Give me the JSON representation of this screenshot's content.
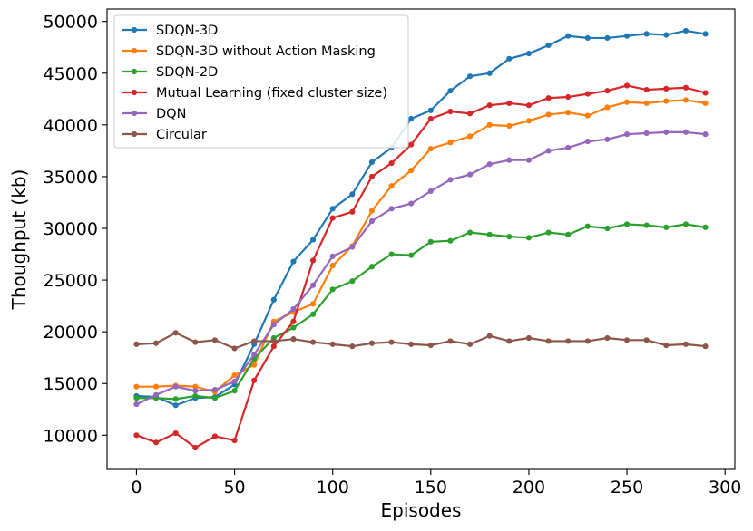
{
  "chart_data": {
    "type": "line",
    "title": "",
    "xlabel": "Episodes",
    "ylabel": "Thoughput (kb)",
    "xlim": [
      -15,
      305
    ],
    "ylim": [
      6700,
      51200
    ],
    "xticks": [
      0,
      50,
      100,
      150,
      200,
      250,
      300
    ],
    "yticks": [
      10000,
      15000,
      20000,
      25000,
      30000,
      35000,
      40000,
      45000,
      50000
    ],
    "grid": false,
    "legend_position": "top-left",
    "x": [
      0,
      10,
      20,
      30,
      40,
      50,
      60,
      70,
      80,
      90,
      100,
      110,
      120,
      130,
      140,
      150,
      160,
      170,
      180,
      190,
      200,
      210,
      220,
      230,
      240,
      250,
      260,
      270,
      280,
      290
    ],
    "series": [
      {
        "name": "SDQN-3D",
        "color": "#1f77b4",
        "values": [
          13800,
          13700,
          12900,
          13600,
          13700,
          14900,
          18800,
          23100,
          26800,
          28900,
          31900,
          33300,
          36400,
          37800,
          40600,
          41400,
          43300,
          44700,
          45000,
          46400,
          46900,
          47700,
          48600,
          48400,
          48400,
          48600,
          48800,
          48700,
          49100,
          48800
        ]
      },
      {
        "name": "SDQN-3D without Action Masking",
        "color": "#ff7f0e",
        "values": [
          14700,
          14700,
          14800,
          14700,
          14200,
          15800,
          16800,
          21000,
          21900,
          22700,
          26400,
          28300,
          31700,
          34100,
          35600,
          37700,
          38300,
          38900,
          40000,
          39900,
          40400,
          41000,
          41200,
          40900,
          41700,
          42200,
          42100,
          42300,
          42400,
          42100
        ]
      },
      {
        "name": "SDQN-2D",
        "color": "#2ca02c",
        "values": [
          13600,
          13600,
          13500,
          13800,
          13600,
          14300,
          17400,
          19400,
          20400,
          21700,
          24100,
          24900,
          26300,
          27500,
          27400,
          28700,
          28800,
          29600,
          29400,
          29200,
          29100,
          29600,
          29400,
          30200,
          30000,
          30400,
          30300,
          30100,
          30400,
          30100
        ]
      },
      {
        "name": "Mutual Learning (fixed cluster size)",
        "color": "#d62728",
        "values": [
          10000,
          9300,
          10200,
          8800,
          9900,
          9500,
          15300,
          18600,
          21000,
          26900,
          31000,
          31600,
          35000,
          36300,
          38100,
          40600,
          41300,
          41100,
          41900,
          42100,
          41900,
          42600,
          42700,
          43000,
          43300,
          43800,
          43400,
          43500,
          43600,
          43100
        ]
      },
      {
        "name": "DQN",
        "color": "#9467bd",
        "values": [
          13000,
          13900,
          14700,
          14300,
          14400,
          15200,
          17800,
          20700,
          22200,
          24500,
          27300,
          28200,
          30700,
          31900,
          32400,
          33600,
          34700,
          35200,
          36200,
          36600,
          36600,
          37500,
          37800,
          38400,
          38600,
          39100,
          39200,
          39300,
          39300,
          39100
        ]
      },
      {
        "name": "Circular",
        "color": "#8c564b",
        "values": [
          18800,
          18900,
          19900,
          19000,
          19200,
          18400,
          19100,
          19100,
          19300,
          19000,
          18800,
          18600,
          18900,
          19000,
          18800,
          18700,
          19100,
          18800,
          19600,
          19100,
          19400,
          19100,
          19100,
          19100,
          19400,
          19200,
          19200,
          18700,
          18800,
          18600
        ]
      }
    ]
  }
}
